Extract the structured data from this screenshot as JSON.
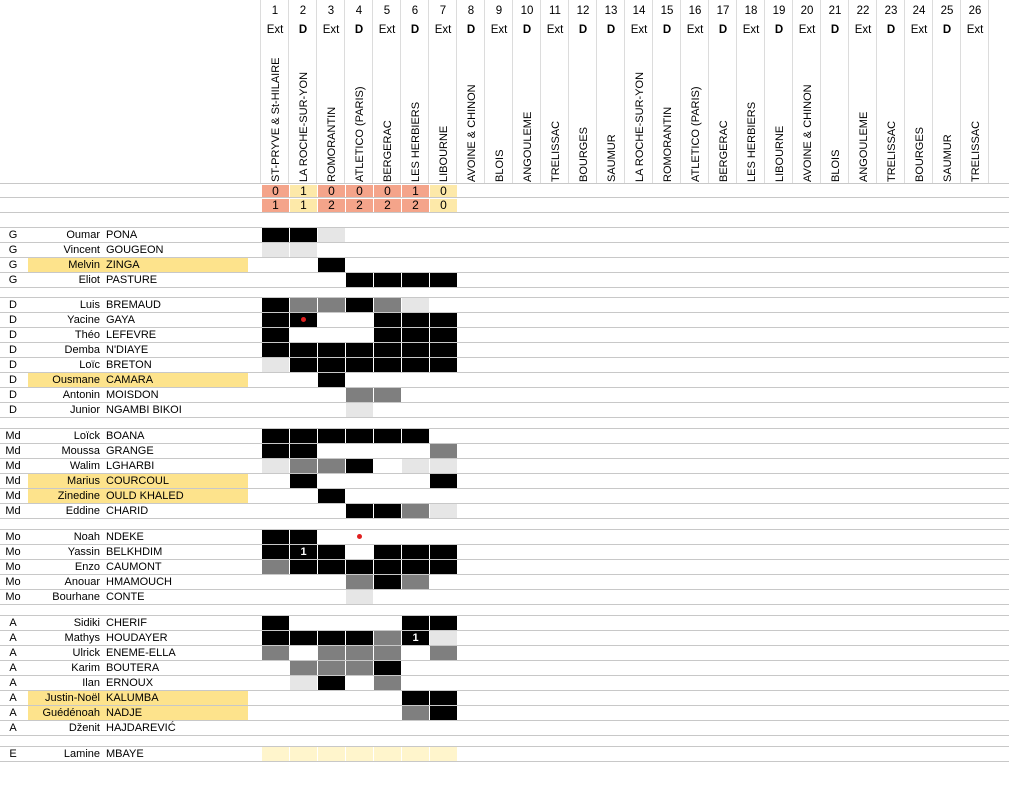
{
  "matches": [
    {
      "n": "1",
      "venue": "Ext",
      "opp": "ST-PRYVE & St-HILAIRE",
      "s1": "0",
      "s2": "1",
      "col": "#f4a48a"
    },
    {
      "n": "2",
      "venue": "D",
      "opp": "LA ROCHE-SUR-YON",
      "s1": "1",
      "s2": "1",
      "col": "#fde9a9"
    },
    {
      "n": "3",
      "venue": "Ext",
      "opp": "ROMORANTIN",
      "s1": "0",
      "s2": "2",
      "col": "#f4a48a"
    },
    {
      "n": "4",
      "venue": "D",
      "opp": "ATLETICO (PARIS)",
      "s1": "0",
      "s2": "2",
      "col": "#f4a48a"
    },
    {
      "n": "5",
      "venue": "Ext",
      "opp": "BERGERAC",
      "s1": "0",
      "s2": "2",
      "col": "#f4a48a"
    },
    {
      "n": "6",
      "venue": "D",
      "opp": "LES HERBIERS",
      "s1": "1",
      "s2": "2",
      "col": "#f4a48a"
    },
    {
      "n": "7",
      "venue": "Ext",
      "opp": "LIBOURNE",
      "s1": "0",
      "s2": "0",
      "col": "#fde9a9"
    },
    {
      "n": "8",
      "venue": "D",
      "opp": "AVOINE & CHINON"
    },
    {
      "n": "9",
      "venue": "Ext",
      "opp": "BLOIS"
    },
    {
      "n": "10",
      "venue": "D",
      "opp": "ANGOULEME"
    },
    {
      "n": "11",
      "venue": "Ext",
      "opp": "TRELISSAC"
    },
    {
      "n": "12",
      "venue": "D",
      "opp": "BOURGES"
    },
    {
      "n": "13",
      "venue": "D",
      "opp": "SAUMUR"
    },
    {
      "n": "14",
      "venue": "Ext",
      "opp": "LA ROCHE-SUR-YON"
    },
    {
      "n": "15",
      "venue": "D",
      "opp": "ROMORANTIN"
    },
    {
      "n": "16",
      "venue": "Ext",
      "opp": "ATLETICO (PARIS)"
    },
    {
      "n": "17",
      "venue": "D",
      "opp": "BERGERAC"
    },
    {
      "n": "18",
      "venue": "Ext",
      "opp": "LES HERBIERS"
    },
    {
      "n": "19",
      "venue": "D",
      "opp": "LIBOURNE"
    },
    {
      "n": "20",
      "venue": "Ext",
      "opp": "AVOINE & CHINON"
    },
    {
      "n": "21",
      "venue": "D",
      "opp": "BLOIS"
    },
    {
      "n": "22",
      "venue": "Ext",
      "opp": "ANGOULEME"
    },
    {
      "n": "23",
      "venue": "D",
      "opp": "TRELISSAC"
    },
    {
      "n": "24",
      "venue": "Ext",
      "opp": "BOURGES"
    },
    {
      "n": "25",
      "venue": "D",
      "opp": "SAUMUR"
    },
    {
      "n": "26",
      "venue": "Ext",
      "opp": "TRELISSAC"
    }
  ],
  "groups": [
    {
      "players": [
        {
          "pos": "G",
          "first": "Oumar",
          "last": "PONA",
          "hl": false,
          "cells": [
            3,
            3,
            1,
            0,
            0,
            0,
            0
          ]
        },
        {
          "pos": "G",
          "first": "Vincent",
          "last": "GOUGEON",
          "hl": false,
          "cells": [
            1,
            1,
            0,
            0,
            0,
            0,
            0
          ]
        },
        {
          "pos": "G",
          "first": "Melvin",
          "last": "ZINGA",
          "hl": true,
          "cells": [
            0,
            0,
            3,
            0,
            0,
            0,
            0
          ]
        },
        {
          "pos": "G",
          "first": "Eliot",
          "last": "PASTURE",
          "hl": false,
          "cells": [
            0,
            0,
            0,
            3,
            3,
            3,
            3
          ]
        }
      ]
    },
    {
      "players": [
        {
          "pos": "D",
          "first": "Luis",
          "last": "BREMAUD",
          "hl": false,
          "cells": [
            3,
            2,
            2,
            3,
            2,
            1,
            0
          ]
        },
        {
          "pos": "D",
          "first": "Yacine",
          "last": "GAYA",
          "hl": false,
          "cells": [
            3,
            3,
            0,
            0,
            3,
            3,
            3
          ],
          "dot": 1
        },
        {
          "pos": "D",
          "first": "Théo",
          "last": "LEFEVRE",
          "hl": false,
          "cells": [
            3,
            0,
            0,
            0,
            3,
            3,
            3
          ]
        },
        {
          "pos": "D",
          "first": "Demba",
          "last": "N'DIAYE",
          "hl": false,
          "cells": [
            3,
            3,
            3,
            3,
            3,
            3,
            3
          ]
        },
        {
          "pos": "D",
          "first": "Loïc",
          "last": "BRETON",
          "hl": false,
          "cells": [
            1,
            3,
            3,
            3,
            3,
            3,
            3
          ]
        },
        {
          "pos": "D",
          "first": "Ousmane",
          "last": "CAMARA",
          "hl": true,
          "cells": [
            0,
            0,
            3,
            0,
            0,
            0,
            0
          ]
        },
        {
          "pos": "D",
          "first": "Antonin",
          "last": "MOISDON",
          "hl": false,
          "cells": [
            0,
            0,
            0,
            2,
            2,
            0,
            0
          ]
        },
        {
          "pos": "D",
          "first": "Junior",
          "last": "NGAMBI BIKOI",
          "hl": false,
          "cells": [
            0,
            0,
            0,
            1,
            0,
            0,
            0
          ]
        }
      ]
    },
    {
      "players": [
        {
          "pos": "Md",
          "first": "Loïck",
          "last": "BOANA",
          "hl": false,
          "cells": [
            3,
            3,
            3,
            3,
            3,
            3,
            0
          ]
        },
        {
          "pos": "Md",
          "first": "Moussa",
          "last": "GRANGE",
          "hl": false,
          "cells": [
            3,
            3,
            0,
            0,
            0,
            0,
            2
          ]
        },
        {
          "pos": "Md",
          "first": "Walim",
          "last": "LGHARBI",
          "hl": false,
          "cells": [
            1,
            2,
            2,
            3,
            0,
            1,
            1
          ]
        },
        {
          "pos": "Md",
          "first": "Marius",
          "last": "COURCOUL",
          "hl": true,
          "cells": [
            0,
            3,
            0,
            0,
            0,
            0,
            3
          ]
        },
        {
          "pos": "Md",
          "first": "Zinedine",
          "last": "OULD KHALED",
          "hl": true,
          "cells": [
            0,
            0,
            3,
            0,
            0,
            0,
            0
          ]
        },
        {
          "pos": "Md",
          "first": "Eddine",
          "last": "CHARID",
          "hl": false,
          "cells": [
            0,
            0,
            0,
            3,
            3,
            2,
            1
          ]
        }
      ]
    },
    {
      "players": [
        {
          "pos": "Mo",
          "first": "Noah",
          "last": "NDEKE",
          "hl": false,
          "cells": [
            3,
            3,
            0,
            0,
            0,
            0,
            0
          ],
          "dot": 3
        },
        {
          "pos": "Mo",
          "first": "Yassin",
          "last": "BELKHDIM",
          "hl": false,
          "cells": [
            3,
            3,
            3,
            0,
            3,
            3,
            3
          ],
          "goal": {
            "col": 1,
            "text": "1"
          }
        },
        {
          "pos": "Mo",
          "first": "Enzo",
          "last": "CAUMONT",
          "hl": false,
          "cells": [
            2,
            3,
            3,
            3,
            3,
            3,
            3
          ]
        },
        {
          "pos": "Mo",
          "first": "Anouar",
          "last": "HMAMOUCH",
          "hl": false,
          "cells": [
            0,
            0,
            0,
            2,
            3,
            2,
            0
          ]
        },
        {
          "pos": "Mo",
          "first": "Bourhane",
          "last": "CONTE",
          "hl": false,
          "cells": [
            0,
            0,
            0,
            1,
            0,
            0,
            0
          ]
        }
      ]
    },
    {
      "players": [
        {
          "pos": "A",
          "first": "Sidiki",
          "last": "CHERIF",
          "hl": false,
          "cells": [
            3,
            0,
            0,
            0,
            0,
            3,
            3
          ]
        },
        {
          "pos": "A",
          "first": "Mathys",
          "last": "HOUDAYER",
          "hl": false,
          "cells": [
            3,
            3,
            3,
            3,
            2,
            3,
            1
          ],
          "goal": {
            "col": 5,
            "text": "1"
          }
        },
        {
          "pos": "A",
          "first": "Ulrick",
          "last": "ENEME-ELLA",
          "hl": false,
          "cells": [
            2,
            0,
            2,
            2,
            2,
            0,
            2
          ]
        },
        {
          "pos": "A",
          "first": "Karim",
          "last": "BOUTERA",
          "hl": false,
          "cells": [
            0,
            2,
            2,
            2,
            3,
            0,
            0
          ]
        },
        {
          "pos": "A",
          "first": "Ilan",
          "last": "ERNOUX",
          "hl": false,
          "cells": [
            0,
            1,
            3,
            0,
            2,
            0,
            0
          ]
        },
        {
          "pos": "A",
          "first": "Justin-Noël",
          "last": "KALUMBA",
          "hl": true,
          "cells": [
            0,
            0,
            0,
            0,
            0,
            3,
            3
          ]
        },
        {
          "pos": "A",
          "first": "Guédénoah",
          "last": "NADJE",
          "hl": true,
          "cells": [
            0,
            0,
            0,
            0,
            0,
            2,
            3
          ]
        },
        {
          "pos": "A",
          "first": "Dženit",
          "last": "HAJDAREVIĆ",
          "hl": false,
          "cells": [
            0,
            0,
            0,
            0,
            0,
            0,
            0
          ]
        }
      ]
    },
    {
      "players": [
        {
          "pos": "E",
          "first": "Lamine",
          "last": "MBAYE",
          "hl": false,
          "cells": [
            4,
            4,
            4,
            4,
            4,
            4,
            4
          ]
        }
      ]
    }
  ]
}
